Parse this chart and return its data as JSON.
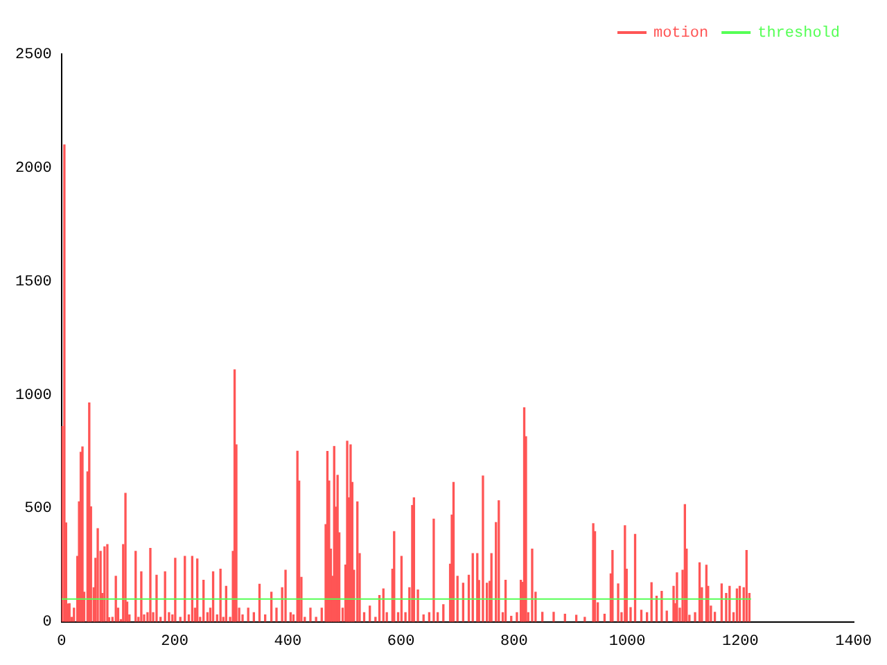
{
  "chart_data": {
    "type": "bar",
    "xlim": [
      0,
      1400
    ],
    "xticks": [
      0,
      200,
      400,
      600,
      800,
      1000,
      1200,
      1400
    ],
    "ylim": [
      0,
      2500
    ],
    "yticks": [
      0,
      500,
      1000,
      1500,
      2000,
      2500
    ],
    "legend": "top right",
    "series": [
      {
        "name": "motion",
        "color": "#ff5555",
        "x": [
          1,
          5,
          8,
          11,
          14,
          18,
          22,
          28,
          31,
          34,
          37,
          40,
          46,
          49,
          52,
          57,
          60,
          64,
          69,
          72,
          76,
          81,
          84,
          90,
          96,
          100,
          105,
          109,
          113,
          116,
          120,
          131,
          136,
          141,
          146,
          152,
          157,
          162,
          168,
          175,
          183,
          190,
          196,
          201,
          210,
          218,
          225,
          231,
          236,
          240,
          245,
          251,
          258,
          263,
          268,
          275,
          281,
          286,
          291,
          298,
          303,
          306,
          309,
          314,
          320,
          330,
          340,
          350,
          360,
          371,
          380,
          390,
          396,
          405,
          410,
          417,
          420,
          424,
          430,
          440,
          450,
          460,
          467,
          470,
          473,
          476,
          479,
          482,
          485,
          488,
          491,
          497,
          502,
          505,
          508,
          511,
          514,
          517,
          523,
          527,
          535,
          545,
          555,
          562,
          569,
          575,
          585,
          588,
          595,
          601,
          608,
          615,
          620,
          623,
          630,
          640,
          650,
          658,
          665,
          675,
          687,
          690,
          693,
          700,
          710,
          720,
          727,
          735,
          738,
          745,
          752,
          757,
          760,
          768,
          773,
          780,
          785,
          795,
          805,
          812,
          815,
          818,
          821,
          825,
          832,
          838,
          850,
          870,
          890,
          910,
          925,
          940,
          943,
          948,
          960,
          971,
          974,
          984,
          990,
          996,
          999,
          1006,
          1014,
          1025,
          1035,
          1043,
          1052,
          1061,
          1070,
          1082,
          1085,
          1088,
          1093,
          1098,
          1102,
          1105,
          1110,
          1120,
          1128,
          1132,
          1140,
          1143,
          1148,
          1155,
          1167,
          1175,
          1181,
          1188,
          1194,
          1199,
          1206,
          1211,
          1216
        ],
        "values": [
          860,
          2100,
          435,
          78,
          80,
          20,
          60,
          288,
          528,
          746,
          770,
          130,
          660,
          964,
          506,
          150,
          280,
          410,
          310,
          125,
          330,
          340,
          18,
          20,
          200,
          60,
          10,
          340,
          566,
          87,
          30,
          310,
          20,
          220,
          30,
          40,
          323,
          40,
          205,
          20,
          220,
          40,
          30,
          280,
          20,
          288,
          30,
          288,
          60,
          277,
          20,
          183,
          40,
          60,
          220,
          30,
          232,
          20,
          156,
          20,
          310,
          1109,
          779,
          60,
          30,
          60,
          40,
          165,
          30,
          130,
          60,
          150,
          227,
          40,
          30,
          751,
          620,
          196,
          20,
          60,
          20,
          60,
          428,
          750,
          620,
          320,
          200,
          772,
          505,
          645,
          392,
          60,
          250,
          795,
          546,
          779,
          614,
          227,
          528,
          300,
          40,
          69,
          20,
          116,
          145,
          40,
          232,
          397,
          40,
          288,
          40,
          150,
          512,
          546,
          140,
          30,
          40,
          452,
          40,
          75,
          254,
          470,
          614,
          200,
          170,
          205,
          300,
          300,
          182,
          642,
          170,
          178,
          300,
          437,
          533,
          40,
          183,
          24,
          40,
          183,
          174,
          942,
          815,
          40,
          320,
          130,
          42,
          42,
          33,
          29,
          20,
          432,
          397,
          84,
          33,
          211,
          314,
          167,
          40,
          423,
          232,
          62,
          385,
          51,
          40,
          172,
          113,
          134,
          47,
          156,
          80,
          216,
          60,
          227,
          516,
          320,
          29,
          40,
          260,
          150,
          249,
          156,
          69,
          42,
          167,
          125,
          156,
          40,
          145,
          156,
          150,
          314,
          125
        ]
      },
      {
        "name": "threshold",
        "type": "line",
        "color": "#55ff55",
        "x": [
          0,
          1219
        ],
        "values": [
          100,
          100
        ]
      }
    ]
  }
}
